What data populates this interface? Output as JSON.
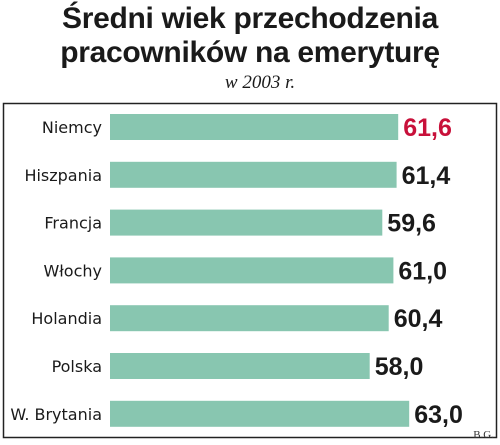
{
  "title_lines": [
    "Średni wiek przechodzenia",
    "pracowników na emeryturę"
  ],
  "subtitle": "w 2003 r.",
  "credit": "B.G.",
  "colors": {
    "bar": "#88c6b0",
    "highlight_value": "#c8103a",
    "value": "#1a1a1a",
    "frame": "#222222"
  },
  "chart_data": {
    "type": "bar",
    "orientation": "horizontal",
    "title": "Średni wiek przechodzenia pracowników na emeryturę",
    "subtitle": "w 2003 r.",
    "categories": [
      "Niemcy",
      "Hiszpania",
      "Francja",
      "Włochy",
      "Holandia",
      "Polska",
      "W. Brytania"
    ],
    "values": [
      61.6,
      61.4,
      59.6,
      61.0,
      60.4,
      58.0,
      63.0
    ],
    "value_labels": [
      "61,6",
      "61,4",
      "59,6",
      "61,0",
      "60,4",
      "58,0",
      "63,0"
    ],
    "highlight_index": 0,
    "grid": false,
    "legend": "none"
  }
}
